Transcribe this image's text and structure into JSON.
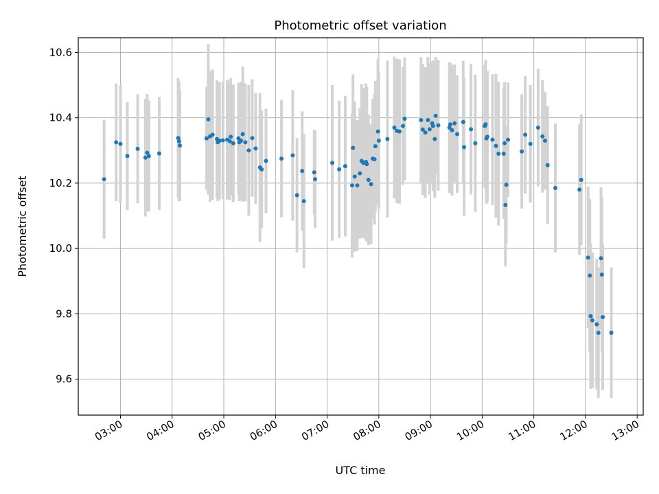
{
  "chart_data": {
    "type": "scatter",
    "title": "Photometric offset variation",
    "xlabel": "UTC time",
    "ylabel": "Photometric offset",
    "x_unit": "UTC time of day",
    "xlim": [
      "02:11",
      "13:07"
    ],
    "ylim": [
      9.49,
      10.645
    ],
    "xticks": [
      "03:00",
      "04:00",
      "05:00",
      "06:00",
      "07:00",
      "08:00",
      "09:00",
      "10:00",
      "11:00",
      "12:00",
      "13:00"
    ],
    "yticks": [
      9.6,
      9.8,
      10.0,
      10.2,
      10.4,
      10.6
    ],
    "grid": true,
    "marker_color": "#1f77b4",
    "errorbar_color": "#d3d3d3",
    "series": [
      {
        "x": [
          "02:41",
          "02:55",
          "03:00",
          "03:08",
          "03:20",
          "03:29",
          "03:31",
          "03:33",
          "03:45",
          "04:07",
          "04:08",
          "04:09",
          "04:40",
          "04:42",
          "04:44",
          "04:47",
          "04:52",
          "04:53",
          "04:55",
          "04:59",
          "05:04",
          "05:07",
          "05:08",
          "05:11",
          "05:17",
          "05:18",
          "05:20",
          "05:22",
          "05:25",
          "05:29",
          "05:33",
          "05:37",
          "05:42",
          "05:44",
          "05:49",
          "06:07",
          "06:20",
          "06:25",
          "06:31",
          "06:33",
          "06:45",
          "06:46",
          "07:06",
          "07:14",
          "07:21",
          "07:29",
          "07:30",
          "07:32",
          "07:35",
          "07:38",
          "07:40",
          "07:42",
          "07:45",
          "07:46",
          "07:48",
          "07:51",
          "07:53",
          "07:55",
          "07:56",
          "07:59",
          "08:00",
          "08:10",
          "08:18",
          "08:21",
          "08:24",
          "08:28",
          "08:30",
          "08:49",
          "08:51",
          "08:54",
          "08:57",
          "08:59",
          "09:02",
          "09:03",
          "09:05",
          "09:06",
          "09:09",
          "09:22",
          "09:23",
          "09:25",
          "09:28",
          "09:31",
          "09:38",
          "09:39",
          "09:47",
          "09:52",
          "10:03",
          "10:04",
          "10:05",
          "10:06",
          "10:12",
          "10:16",
          "10:19",
          "10:25",
          "10:26",
          "10:27",
          "10:28",
          "10:30",
          "10:46",
          "10:50",
          "10:56",
          "11:05",
          "11:10",
          "11:13",
          "11:16",
          "11:25",
          "11:53",
          "11:55",
          "12:03",
          "12:05",
          "12:06",
          "12:08",
          "12:13",
          "12:15",
          "12:18",
          "12:19",
          "12:20",
          "12:30"
        ],
        "y": [
          10.212,
          10.325,
          10.32,
          10.283,
          10.305,
          10.278,
          10.293,
          10.283,
          10.291,
          10.338,
          10.328,
          10.315,
          10.337,
          10.395,
          10.343,
          10.348,
          10.335,
          10.325,
          10.33,
          10.331,
          10.333,
          10.328,
          10.342,
          10.322,
          10.337,
          10.325,
          10.33,
          10.35,
          10.325,
          10.3,
          10.338,
          10.306,
          10.248,
          10.242,
          10.268,
          10.275,
          10.285,
          10.163,
          10.237,
          10.145,
          10.233,
          10.212,
          10.262,
          10.242,
          10.252,
          10.193,
          10.308,
          10.22,
          10.193,
          10.23,
          10.268,
          10.262,
          10.265,
          10.258,
          10.21,
          10.197,
          10.275,
          10.273,
          10.313,
          10.358,
          10.33,
          10.335,
          10.37,
          10.36,
          10.358,
          10.375,
          10.397,
          10.393,
          10.364,
          10.355,
          10.393,
          10.365,
          10.383,
          10.375,
          10.335,
          10.406,
          10.377,
          10.37,
          10.38,
          10.362,
          10.383,
          10.35,
          10.387,
          10.31,
          10.365,
          10.322,
          10.375,
          10.38,
          10.337,
          10.342,
          10.333,
          10.314,
          10.29,
          10.29,
          10.322,
          10.133,
          10.195,
          10.333,
          10.297,
          10.348,
          10.32,
          10.37,
          10.343,
          10.33,
          10.255,
          10.185,
          10.18,
          10.21,
          9.972,
          9.917,
          9.793,
          9.78,
          9.768,
          9.742,
          9.97,
          9.92,
          9.79,
          9.742
        ],
        "err": [
          0.182,
          0.18,
          0.18,
          0.165,
          0.167,
          0.18,
          0.18,
          0.17,
          0.173,
          0.183,
          0.183,
          0.17,
          0.157,
          0.23,
          0.2,
          0.2,
          0.18,
          0.18,
          0.18,
          0.18,
          0.183,
          0.18,
          0.18,
          0.18,
          0.17,
          0.18,
          0.18,
          0.207,
          0.18,
          0.2,
          0.18,
          0.17,
          0.228,
          0.18,
          0.16,
          0.18,
          0.2,
          0.175,
          0.183,
          0.205,
          0.13,
          0.15,
          0.238,
          0.21,
          0.215,
          0.221,
          0.225,
          0.23,
          0.2,
          0.2,
          0.235,
          0.23,
          0.24,
          0.237,
          0.2,
          0.183,
          0.183,
          0.2,
          0.2,
          0.222,
          0.208,
          0.24,
          0.217,
          0.221,
          0.221,
          0.18,
          0.188,
          0.193,
          0.201,
          0.2,
          0.193,
          0.201,
          0.188,
          0.2,
          0.18,
          0.18,
          0.2,
          0.2,
          0.187,
          0.2,
          0.18,
          0.18,
          0.187,
          0.21,
          0.2,
          0.21,
          0.188,
          0.198,
          0.2,
          0.201,
          0.2,
          0.22,
          0.22,
          0.2,
          0.187,
          0.188,
          0.18,
          0.175,
          0.175,
          0.18,
          0.18,
          0.18,
          0.172,
          0.15,
          0.18,
          0.197,
          0.2,
          0.2,
          0.217,
          0.235,
          0.223,
          0.207,
          0.2,
          0.2,
          0.217,
          0.235,
          0.223,
          0.2
        ]
      }
    ]
  }
}
